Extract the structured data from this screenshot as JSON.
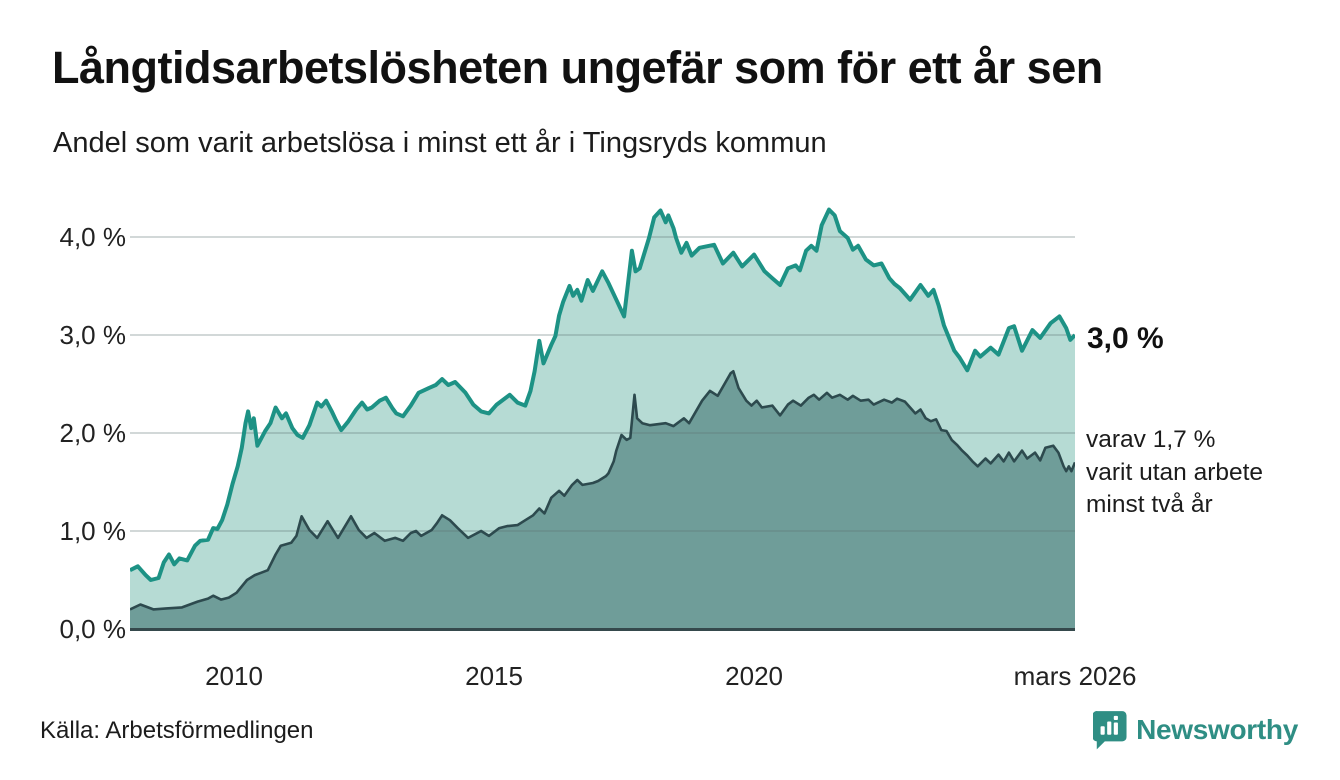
{
  "header": {
    "title": "Långtidsarbetslösheten ungefär som för ett år sen",
    "subtitle": "Andel som varit arbetslösa i minst ett år i Tingsryds kommun"
  },
  "chart_data": {
    "type": "area",
    "title": "Långtidsarbetslösheten ungefär som för ett år sen",
    "subtitle": "Andel som varit arbetslösa i minst ett år i Tingsryds kommun",
    "x_range": [
      2008.0,
      2026.17
    ],
    "y_range": [
      0,
      4.35
    ],
    "grid": "horizontal",
    "colors": {
      "line_over_one_year": "#1d9285",
      "fill_over_one_year": "#b6dbd4",
      "line_over_two_years": "#2d4a4e",
      "fill_over_two_years": "#6f9d99",
      "gridline": "#d9dfde",
      "baseline": "#35494c"
    },
    "x_ticks": [
      {
        "x": 2010,
        "label": "2010"
      },
      {
        "x": 2015,
        "label": "2015"
      },
      {
        "x": 2020,
        "label": "2020"
      },
      {
        "x": 2026.17,
        "label": "mars 2026"
      }
    ],
    "y_ticks": [
      {
        "v": 0,
        "label": "0,0 %"
      },
      {
        "v": 1,
        "label": "1,0 %"
      },
      {
        "v": 2,
        "label": "2,0 %"
      },
      {
        "v": 3,
        "label": "3,0 %"
      },
      {
        "v": 4,
        "label": "4,0 %"
      }
    ],
    "series": [
      {
        "name": "Andel som varit arbetslösa i minst ett år",
        "end_value_label": "3,0 %",
        "points": [
          [
            2008.0,
            0.6
          ],
          [
            2008.15,
            0.64
          ],
          [
            2008.3,
            0.55
          ],
          [
            2008.4,
            0.5
          ],
          [
            2008.55,
            0.52
          ],
          [
            2008.65,
            0.68
          ],
          [
            2008.75,
            0.76
          ],
          [
            2008.85,
            0.66
          ],
          [
            2008.95,
            0.72
          ],
          [
            2009.1,
            0.7
          ],
          [
            2009.25,
            0.85
          ],
          [
            2009.35,
            0.9
          ],
          [
            2009.5,
            0.91
          ],
          [
            2009.6,
            1.03
          ],
          [
            2009.68,
            1.02
          ],
          [
            2009.77,
            1.11
          ],
          [
            2009.87,
            1.27
          ],
          [
            2009.97,
            1.48
          ],
          [
            2010.07,
            1.66
          ],
          [
            2010.15,
            1.85
          ],
          [
            2010.22,
            2.1
          ],
          [
            2010.27,
            2.22
          ],
          [
            2010.33,
            2.05
          ],
          [
            2010.38,
            2.15
          ],
          [
            2010.45,
            1.87
          ],
          [
            2010.6,
            2.02
          ],
          [
            2010.7,
            2.1
          ],
          [
            2010.8,
            2.26
          ],
          [
            2010.92,
            2.15
          ],
          [
            2011.0,
            2.2
          ],
          [
            2011.12,
            2.05
          ],
          [
            2011.22,
            1.98
          ],
          [
            2011.32,
            1.95
          ],
          [
            2011.45,
            2.08
          ],
          [
            2011.6,
            2.31
          ],
          [
            2011.68,
            2.27
          ],
          [
            2011.77,
            2.33
          ],
          [
            2011.88,
            2.22
          ],
          [
            2011.96,
            2.13
          ],
          [
            2012.06,
            2.03
          ],
          [
            2012.2,
            2.12
          ],
          [
            2012.35,
            2.24
          ],
          [
            2012.46,
            2.31
          ],
          [
            2012.56,
            2.24
          ],
          [
            2012.65,
            2.26
          ],
          [
            2012.8,
            2.33
          ],
          [
            2012.92,
            2.36
          ],
          [
            2013.05,
            2.25
          ],
          [
            2013.12,
            2.2
          ],
          [
            2013.25,
            2.17
          ],
          [
            2013.4,
            2.28
          ],
          [
            2013.55,
            2.41
          ],
          [
            2013.75,
            2.46
          ],
          [
            2013.88,
            2.49
          ],
          [
            2014.0,
            2.55
          ],
          [
            2014.12,
            2.49
          ],
          [
            2014.25,
            2.52
          ],
          [
            2014.45,
            2.41
          ],
          [
            2014.6,
            2.29
          ],
          [
            2014.75,
            2.22
          ],
          [
            2014.9,
            2.2
          ],
          [
            2015.05,
            2.29
          ],
          [
            2015.3,
            2.39
          ],
          [
            2015.45,
            2.31
          ],
          [
            2015.6,
            2.28
          ],
          [
            2015.7,
            2.43
          ],
          [
            2015.78,
            2.63
          ],
          [
            2015.87,
            2.94
          ],
          [
            2015.95,
            2.71
          ],
          [
            2016.1,
            2.9
          ],
          [
            2016.18,
            2.99
          ],
          [
            2016.25,
            3.2
          ],
          [
            2016.33,
            3.34
          ],
          [
            2016.45,
            3.5
          ],
          [
            2016.52,
            3.4
          ],
          [
            2016.6,
            3.46
          ],
          [
            2016.68,
            3.35
          ],
          [
            2016.8,
            3.56
          ],
          [
            2016.9,
            3.45
          ],
          [
            2017.08,
            3.65
          ],
          [
            2017.2,
            3.53
          ],
          [
            2017.35,
            3.36
          ],
          [
            2017.5,
            3.19
          ],
          [
            2017.65,
            3.86
          ],
          [
            2017.72,
            3.65
          ],
          [
            2017.8,
            3.68
          ],
          [
            2017.98,
            3.99
          ],
          [
            2018.08,
            4.2
          ],
          [
            2018.2,
            4.27
          ],
          [
            2018.3,
            4.15
          ],
          [
            2018.35,
            4.22
          ],
          [
            2018.45,
            4.09
          ],
          [
            2018.5,
            3.99
          ],
          [
            2018.6,
            3.84
          ],
          [
            2018.7,
            3.94
          ],
          [
            2018.8,
            3.81
          ],
          [
            2018.95,
            3.89
          ],
          [
            2019.23,
            3.92
          ],
          [
            2019.4,
            3.73
          ],
          [
            2019.6,
            3.84
          ],
          [
            2019.77,
            3.7
          ],
          [
            2020.0,
            3.82
          ],
          [
            2020.2,
            3.65
          ],
          [
            2020.35,
            3.58
          ],
          [
            2020.5,
            3.51
          ],
          [
            2020.65,
            3.68
          ],
          [
            2020.8,
            3.71
          ],
          [
            2020.88,
            3.66
          ],
          [
            2021.0,
            3.86
          ],
          [
            2021.1,
            3.91
          ],
          [
            2021.2,
            3.86
          ],
          [
            2021.3,
            4.12
          ],
          [
            2021.44,
            4.28
          ],
          [
            2021.55,
            4.22
          ],
          [
            2021.65,
            4.06
          ],
          [
            2021.8,
            3.99
          ],
          [
            2021.9,
            3.87
          ],
          [
            2022.0,
            3.91
          ],
          [
            2022.15,
            3.77
          ],
          [
            2022.3,
            3.71
          ],
          [
            2022.45,
            3.73
          ],
          [
            2022.6,
            3.58
          ],
          [
            2022.7,
            3.52
          ],
          [
            2022.8,
            3.48
          ],
          [
            2023.0,
            3.36
          ],
          [
            2023.2,
            3.51
          ],
          [
            2023.35,
            3.4
          ],
          [
            2023.45,
            3.46
          ],
          [
            2023.55,
            3.3
          ],
          [
            2023.65,
            3.1
          ],
          [
            2023.85,
            2.84
          ],
          [
            2023.95,
            2.77
          ],
          [
            2024.1,
            2.64
          ],
          [
            2024.25,
            2.84
          ],
          [
            2024.35,
            2.78
          ],
          [
            2024.55,
            2.87
          ],
          [
            2024.7,
            2.8
          ],
          [
            2024.9,
            3.07
          ],
          [
            2025.0,
            3.09
          ],
          [
            2025.15,
            2.84
          ],
          [
            2025.35,
            3.05
          ],
          [
            2025.5,
            2.97
          ],
          [
            2025.7,
            3.12
          ],
          [
            2025.87,
            3.19
          ],
          [
            2026.0,
            3.07
          ],
          [
            2026.08,
            2.95
          ],
          [
            2026.17,
            3.0
          ]
        ]
      },
      {
        "name": "varav arbetslösa minst två år",
        "end_value_label": "1,7 %",
        "points": [
          [
            2008.0,
            0.2
          ],
          [
            2008.2,
            0.25
          ],
          [
            2008.45,
            0.2
          ],
          [
            2008.7,
            0.21
          ],
          [
            2009.0,
            0.22
          ],
          [
            2009.3,
            0.28
          ],
          [
            2009.5,
            0.31
          ],
          [
            2009.6,
            0.34
          ],
          [
            2009.75,
            0.3
          ],
          [
            2009.9,
            0.32
          ],
          [
            2010.05,
            0.37
          ],
          [
            2010.25,
            0.5
          ],
          [
            2010.4,
            0.55
          ],
          [
            2010.55,
            0.58
          ],
          [
            2010.65,
            0.6
          ],
          [
            2010.8,
            0.76
          ],
          [
            2010.9,
            0.85
          ],
          [
            2011.1,
            0.88
          ],
          [
            2011.2,
            0.95
          ],
          [
            2011.3,
            1.15
          ],
          [
            2011.45,
            1.01
          ],
          [
            2011.6,
            0.93
          ],
          [
            2011.8,
            1.1
          ],
          [
            2012.0,
            0.93
          ],
          [
            2012.25,
            1.15
          ],
          [
            2012.4,
            1.01
          ],
          [
            2012.55,
            0.93
          ],
          [
            2012.7,
            0.98
          ],
          [
            2012.9,
            0.9
          ],
          [
            2013.1,
            0.93
          ],
          [
            2013.25,
            0.9
          ],
          [
            2013.4,
            0.98
          ],
          [
            2013.5,
            1.0
          ],
          [
            2013.6,
            0.95
          ],
          [
            2013.8,
            1.01
          ],
          [
            2013.9,
            1.08
          ],
          [
            2014.0,
            1.16
          ],
          [
            2014.15,
            1.11
          ],
          [
            2014.3,
            1.03
          ],
          [
            2014.5,
            0.93
          ],
          [
            2014.75,
            1.0
          ],
          [
            2014.9,
            0.95
          ],
          [
            2015.1,
            1.03
          ],
          [
            2015.25,
            1.05
          ],
          [
            2015.45,
            1.06
          ],
          [
            2015.6,
            1.11
          ],
          [
            2015.75,
            1.16
          ],
          [
            2015.87,
            1.23
          ],
          [
            2015.97,
            1.18
          ],
          [
            2016.1,
            1.34
          ],
          [
            2016.25,
            1.41
          ],
          [
            2016.35,
            1.36
          ],
          [
            2016.5,
            1.47
          ],
          [
            2016.6,
            1.52
          ],
          [
            2016.7,
            1.47
          ],
          [
            2016.9,
            1.49
          ],
          [
            2017.0,
            1.51
          ],
          [
            2017.15,
            1.56
          ],
          [
            2017.2,
            1.59
          ],
          [
            2017.3,
            1.71
          ],
          [
            2017.35,
            1.82
          ],
          [
            2017.45,
            1.98
          ],
          [
            2017.55,
            1.93
          ],
          [
            2017.62,
            1.95
          ],
          [
            2017.7,
            2.39
          ],
          [
            2017.75,
            2.15
          ],
          [
            2017.85,
            2.1
          ],
          [
            2018.0,
            2.08
          ],
          [
            2018.3,
            2.1
          ],
          [
            2018.45,
            2.07
          ],
          [
            2018.65,
            2.15
          ],
          [
            2018.75,
            2.1
          ],
          [
            2019.0,
            2.33
          ],
          [
            2019.15,
            2.43
          ],
          [
            2019.3,
            2.38
          ],
          [
            2019.55,
            2.61
          ],
          [
            2019.6,
            2.63
          ],
          [
            2019.7,
            2.46
          ],
          [
            2019.85,
            2.33
          ],
          [
            2019.95,
            2.28
          ],
          [
            2020.05,
            2.33
          ],
          [
            2020.15,
            2.26
          ],
          [
            2020.35,
            2.28
          ],
          [
            2020.5,
            2.18
          ],
          [
            2020.65,
            2.29
          ],
          [
            2020.75,
            2.33
          ],
          [
            2020.9,
            2.28
          ],
          [
            2021.05,
            2.36
          ],
          [
            2021.15,
            2.39
          ],
          [
            2021.25,
            2.34
          ],
          [
            2021.4,
            2.41
          ],
          [
            2021.5,
            2.36
          ],
          [
            2021.65,
            2.39
          ],
          [
            2021.8,
            2.34
          ],
          [
            2021.9,
            2.38
          ],
          [
            2022.05,
            2.33
          ],
          [
            2022.2,
            2.34
          ],
          [
            2022.3,
            2.29
          ],
          [
            2022.5,
            2.34
          ],
          [
            2022.65,
            2.31
          ],
          [
            2022.75,
            2.35
          ],
          [
            2022.9,
            2.32
          ],
          [
            2023.0,
            2.26
          ],
          [
            2023.1,
            2.2
          ],
          [
            2023.2,
            2.24
          ],
          [
            2023.3,
            2.15
          ],
          [
            2023.4,
            2.12
          ],
          [
            2023.5,
            2.14
          ],
          [
            2023.6,
            2.03
          ],
          [
            2023.7,
            2.02
          ],
          [
            2023.8,
            1.93
          ],
          [
            2023.9,
            1.88
          ],
          [
            2024.0,
            1.82
          ],
          [
            2024.1,
            1.77
          ],
          [
            2024.2,
            1.71
          ],
          [
            2024.3,
            1.66
          ],
          [
            2024.45,
            1.74
          ],
          [
            2024.55,
            1.69
          ],
          [
            2024.7,
            1.78
          ],
          [
            2024.8,
            1.71
          ],
          [
            2024.9,
            1.8
          ],
          [
            2025.0,
            1.71
          ],
          [
            2025.15,
            1.82
          ],
          [
            2025.25,
            1.74
          ],
          [
            2025.4,
            1.8
          ],
          [
            2025.5,
            1.72
          ],
          [
            2025.6,
            1.85
          ],
          [
            2025.75,
            1.87
          ],
          [
            2025.85,
            1.8
          ],
          [
            2025.95,
            1.66
          ],
          [
            2026.0,
            1.61
          ],
          [
            2026.05,
            1.66
          ],
          [
            2026.1,
            1.61
          ],
          [
            2026.17,
            1.7
          ]
        ]
      }
    ],
    "annotations": {
      "primary_end_label": "3,0 %",
      "secondary_end_label_lines": [
        "varav 1,7 %",
        "varit utan arbete",
        "minst två år"
      ]
    }
  },
  "footer": {
    "source": "Källa: Arbetsförmedlingen",
    "brand": "Newsworthy"
  }
}
